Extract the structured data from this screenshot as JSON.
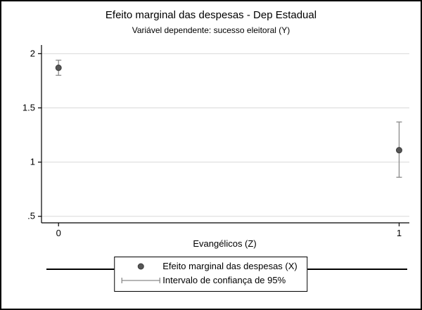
{
  "colors": {
    "background": "#ffffff",
    "frame_border": "#000000",
    "axis": "#000000",
    "grid": "#d9d9d9",
    "marker": "#565656",
    "marker_outline": "#3a3a3a",
    "ci": "#8a8a8a",
    "text": "#000000"
  },
  "chart_data": {
    "type": "scatter",
    "title": "Efeito marginal das despesas - Dep Estadual",
    "subtitle": "Variável dependente: sucesso eleitoral (Y)",
    "xlabel": "Evangélicos (Z)",
    "ylabel": "",
    "xlim": [
      -0.05,
      1.03
    ],
    "ylim": [
      0.44,
      2.08
    ],
    "grid": "horizontal",
    "legend_position": "bottom-center",
    "xticks": [
      {
        "value": 0,
        "label": "0"
      },
      {
        "value": 1,
        "label": "1"
      }
    ],
    "yticks": [
      {
        "value": 2,
        "label": "2"
      },
      {
        "value": 1.5,
        "label": "1.5"
      },
      {
        "value": 1,
        "label": "1"
      },
      {
        "value": 0.5,
        "label": ".5"
      }
    ],
    "points": [
      {
        "x": 0,
        "y": 1.87,
        "ci_low": 1.8,
        "ci_high": 1.94
      },
      {
        "x": 1,
        "y": 1.11,
        "ci_low": 0.86,
        "ci_high": 1.37
      }
    ],
    "legend": [
      {
        "marker": "dot",
        "label": "Efeito marginal das despesas (X)"
      },
      {
        "marker": "error-bar",
        "label": "Intervalo de confiança de 95%"
      }
    ]
  }
}
